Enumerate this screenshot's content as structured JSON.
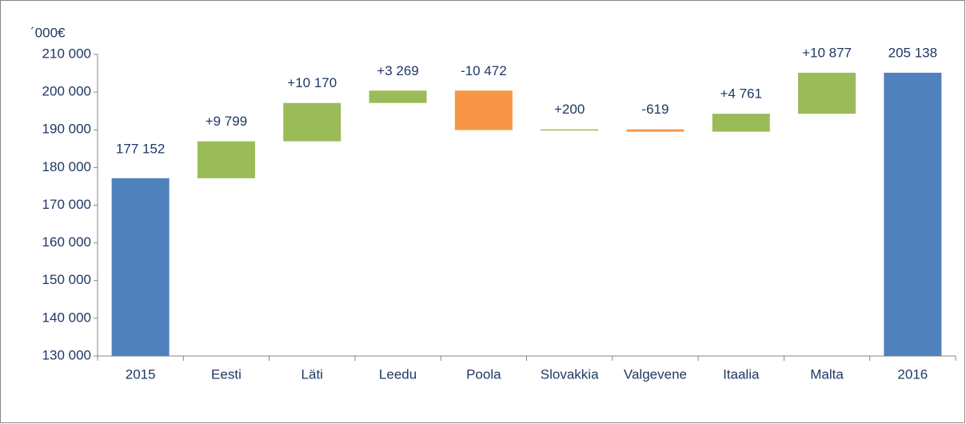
{
  "chart_data": {
    "type": "waterfall",
    "y_label": "´000€",
    "categories": [
      "2015",
      "Eesti",
      "Läti",
      "Leedu",
      "Poola",
      "Slovakkia",
      "Valgevene",
      "Itaalia",
      "Malta",
      "2016"
    ],
    "measure": [
      "absolute",
      "relative",
      "relative",
      "relative",
      "relative",
      "relative",
      "relative",
      "relative",
      "relative",
      "absolute"
    ],
    "values": [
      177152,
      9799,
      10170,
      3269,
      -10472,
      200,
      -619,
      4761,
      10877,
      205138
    ],
    "value_labels": [
      "177 152",
      "+9 799",
      "+10 170",
      "+3 269",
      "-10 472",
      "+200",
      "-619",
      "+4 761",
      "+10 877",
      "205 138"
    ],
    "colors": {
      "total": "#4f81bd",
      "increase": "#9bbb59",
      "decrease": "#f79646"
    },
    "ylim": [
      130000,
      210000
    ],
    "yticks": [
      {
        "value": 130000,
        "label": "130 000"
      },
      {
        "value": 140000,
        "label": "140 000"
      },
      {
        "value": 150000,
        "label": "150 000"
      },
      {
        "value": 160000,
        "label": "160 000"
      },
      {
        "value": 170000,
        "label": "170 000"
      },
      {
        "value": 180000,
        "label": "180 000"
      },
      {
        "value": 190000,
        "label": "190 000"
      },
      {
        "value": 200000,
        "label": "200 000"
      },
      {
        "value": 210000,
        "label": "210 000"
      }
    ],
    "grid": false
  }
}
